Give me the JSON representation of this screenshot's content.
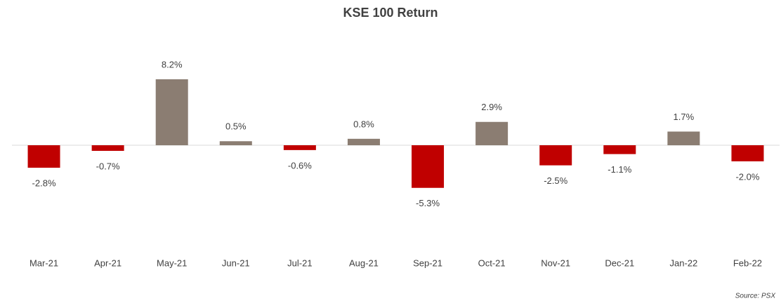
{
  "chart_data": {
    "type": "bar",
    "title": "KSE 100 Return",
    "categories": [
      "Mar-21",
      "Apr-21",
      "May-21",
      "Jun-21",
      "Jul-21",
      "Aug-21",
      "Sep-21",
      "Oct-21",
      "Nov-21",
      "Dec-21",
      "Jan-22",
      "Feb-22"
    ],
    "values": [
      -2.8,
      -0.7,
      8.2,
      0.5,
      -0.6,
      0.8,
      -5.3,
      2.9,
      -2.5,
      -1.1,
      1.7,
      -2.0
    ],
    "value_labels": [
      "-2.8%",
      "-0.7%",
      "8.2%",
      "0.5%",
      "-0.6%",
      "0.8%",
      "-5.3%",
      "2.9%",
      "-2.5%",
      "-1.1%",
      "1.7%",
      "-2.0%"
    ],
    "positive_color": "#8b7d72",
    "negative_color": "#c00000",
    "source": "Source: PSX"
  }
}
